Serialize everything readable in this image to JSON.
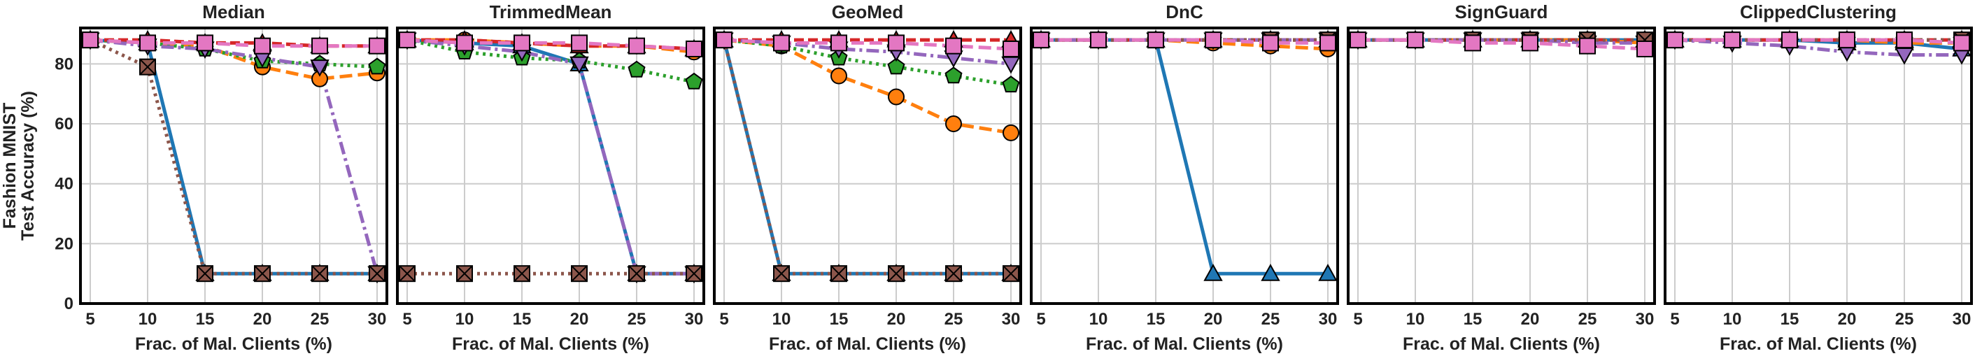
{
  "chart_data": {
    "type": "line",
    "ylabel_lines": [
      "Fashion MNIST",
      "Test Accuracy (%)"
    ],
    "xlabel": "Frac. of Mal. Clients (%)",
    "x": [
      5,
      10,
      15,
      20,
      25,
      30
    ],
    "xticks": [
      "5",
      "10",
      "15",
      "20",
      "25",
      "30"
    ],
    "ylim": [
      0,
      92
    ],
    "yticks": [
      0,
      20,
      40,
      60,
      80
    ],
    "grid": true,
    "series_styles": [
      {
        "key": "s1",
        "color": "#1f77b4",
        "dash": "",
        "marker": "triangle"
      },
      {
        "key": "s2",
        "color": "#ff7f0e",
        "dash": "18,8",
        "marker": "circle"
      },
      {
        "key": "s3",
        "color": "#2ca02c",
        "dash": "4,6",
        "marker": "pentagon"
      },
      {
        "key": "s4",
        "color": "#d62728",
        "dash": "14,6",
        "marker": "triangle-up-red"
      },
      {
        "key": "s5",
        "color": "#9467bd",
        "dash": "18,6,4,6",
        "marker": "triangle-down"
      },
      {
        "key": "s6",
        "color": "#8c564b",
        "dash": "4,6",
        "marker": "x-square"
      },
      {
        "key": "s7",
        "color": "#e377c2",
        "dash": "18,8",
        "marker": "square"
      }
    ],
    "panels": [
      {
        "title": "Median",
        "series": [
          {
            "key": "s1",
            "values": [
              88,
              87,
              10,
              10,
              10,
              10
            ]
          },
          {
            "key": "s2",
            "values": [
              88,
              87,
              86,
              79,
              75,
              77
            ]
          },
          {
            "key": "s3",
            "values": [
              88,
              87,
              85,
              81,
              80,
              79
            ]
          },
          {
            "key": "s4",
            "values": [
              88,
              88,
              87,
              87,
              86,
              86
            ]
          },
          {
            "key": "s5",
            "values": [
              88,
              86,
              85,
              82,
              79,
              10
            ]
          },
          {
            "key": "s6",
            "values": [
              88,
              79,
              10,
              10,
              10,
              10
            ]
          },
          {
            "key": "s7",
            "values": [
              88,
              87,
              87,
              86,
              86,
              86
            ]
          }
        ]
      },
      {
        "title": "TrimmedMean",
        "series": [
          {
            "key": "s1",
            "values": [
              88,
              87,
              86,
              80,
              10,
              10
            ]
          },
          {
            "key": "s2",
            "values": [
              88,
              88,
              87,
              86,
              86,
              84
            ]
          },
          {
            "key": "s3",
            "values": [
              88,
              84,
              82,
              81,
              78,
              74
            ]
          },
          {
            "key": "s4",
            "values": [
              88,
              88,
              87,
              86,
              86,
              85
            ]
          },
          {
            "key": "s5",
            "values": [
              88,
              86,
              84,
              80,
              10,
              10
            ]
          },
          {
            "key": "s6",
            "values": [
              10,
              10,
              10,
              10,
              10,
              10
            ]
          },
          {
            "key": "s7",
            "values": [
              88,
              87,
              87,
              87,
              86,
              85
            ]
          }
        ]
      },
      {
        "title": "GeoMed",
        "series": [
          {
            "key": "s1",
            "values": [
              88,
              10,
              10,
              10,
              10,
              10
            ]
          },
          {
            "key": "s2",
            "values": [
              88,
              86,
              76,
              69,
              60,
              57
            ]
          },
          {
            "key": "s3",
            "values": [
              88,
              86,
              82,
              79,
              76,
              73
            ]
          },
          {
            "key": "s4",
            "values": [
              88,
              88,
              88,
              88,
              88,
              88
            ]
          },
          {
            "key": "s5",
            "values": [
              88,
              87,
              85,
              84,
              82,
              80
            ]
          },
          {
            "key": "s6",
            "values": [
              88,
              10,
              10,
              10,
              10,
              10
            ]
          },
          {
            "key": "s7",
            "values": [
              88,
              87,
              87,
              87,
              86,
              85
            ]
          }
        ]
      },
      {
        "title": "DnC",
        "series": [
          {
            "key": "s1",
            "values": [
              88,
              88,
              88,
              10,
              10,
              10
            ]
          },
          {
            "key": "s2",
            "values": [
              88,
              88,
              88,
              87,
              86,
              85
            ]
          },
          {
            "key": "s3",
            "values": [
              88,
              88,
              88,
              88,
              88,
              88
            ]
          },
          {
            "key": "s4",
            "values": [
              88,
              88,
              88,
              88,
              88,
              88
            ]
          },
          {
            "key": "s5",
            "values": [
              88,
              88,
              88,
              88,
              88,
              88
            ]
          },
          {
            "key": "s6",
            "values": [
              88,
              88,
              88,
              88,
              88,
              88
            ]
          },
          {
            "key": "s7",
            "values": [
              88,
              88,
              88,
              88,
              87,
              87
            ]
          }
        ]
      },
      {
        "title": "SignGuard",
        "series": [
          {
            "key": "s1",
            "values": [
              88,
              88,
              88,
              88,
              88,
              88
            ]
          },
          {
            "key": "s2",
            "values": [
              88,
              88,
              88,
              88,
              88,
              87
            ]
          },
          {
            "key": "s3",
            "values": [
              88,
              88,
              88,
              88,
              88,
              88
            ]
          },
          {
            "key": "s4",
            "values": [
              88,
              88,
              88,
              88,
              88,
              88
            ]
          },
          {
            "key": "s5",
            "values": [
              88,
              88,
              88,
              88,
              87,
              87
            ]
          },
          {
            "key": "s6",
            "values": [
              88,
              88,
              88,
              88,
              88,
              88
            ]
          },
          {
            "key": "s7",
            "values": [
              88,
              88,
              87,
              87,
              86,
              85
            ]
          }
        ]
      },
      {
        "title": "ClippedClustering",
        "series": [
          {
            "key": "s1",
            "values": [
              88,
              88,
              88,
              87,
              87,
              85
            ]
          },
          {
            "key": "s2",
            "values": [
              88,
              88,
              88,
              88,
              87,
              87
            ]
          },
          {
            "key": "s3",
            "values": [
              88,
              88,
              88,
              88,
              88,
              88
            ]
          },
          {
            "key": "s4",
            "values": [
              88,
              88,
              88,
              88,
              88,
              88
            ]
          },
          {
            "key": "s5",
            "values": [
              88,
              87,
              86,
              84,
              83,
              83
            ]
          },
          {
            "key": "s6",
            "values": [
              88,
              88,
              88,
              88,
              88,
              88
            ]
          },
          {
            "key": "s7",
            "values": [
              88,
              88,
              88,
              88,
              88,
              87
            ]
          }
        ]
      }
    ]
  }
}
